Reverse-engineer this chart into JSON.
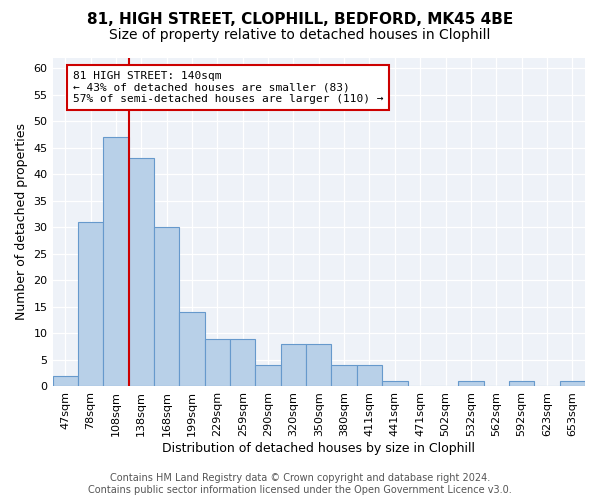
{
  "title1": "81, HIGH STREET, CLOPHILL, BEDFORD, MK45 4BE",
  "title2": "Size of property relative to detached houses in Clophill",
  "xlabel": "Distribution of detached houses by size in Clophill",
  "ylabel": "Number of detached properties",
  "bar_values": [
    2,
    31,
    47,
    43,
    30,
    14,
    9,
    9,
    4,
    8,
    8,
    4,
    4,
    1,
    0,
    0,
    1,
    0,
    1,
    0,
    1
  ],
  "bar_labels": [
    "47sqm",
    "78sqm",
    "108sqm",
    "138sqm",
    "168sqm",
    "199sqm",
    "229sqm",
    "259sqm",
    "290sqm",
    "320sqm",
    "350sqm",
    "380sqm",
    "411sqm",
    "441sqm",
    "471sqm",
    "502sqm",
    "532sqm",
    "562sqm",
    "592sqm",
    "623sqm",
    "653sqm"
  ],
  "bar_color": "#b8d0e8",
  "bar_edge_color": "#6699cc",
  "vline_color": "#cc0000",
  "vline_x_index": 3,
  "annotation_text": "81 HIGH STREET: 140sqm\n← 43% of detached houses are smaller (83)\n57% of semi-detached houses are larger (110) →",
  "annotation_box_color": "#ffffff",
  "annotation_box_edge_color": "#cc0000",
  "ylim": [
    0,
    62
  ],
  "yticks": [
    0,
    5,
    10,
    15,
    20,
    25,
    30,
    35,
    40,
    45,
    50,
    55,
    60
  ],
  "footer_text": "Contains HM Land Registry data © Crown copyright and database right 2024.\nContains public sector information licensed under the Open Government Licence v3.0.",
  "title1_fontsize": 11,
  "title2_fontsize": 10,
  "xlabel_fontsize": 9,
  "ylabel_fontsize": 9,
  "tick_fontsize": 8,
  "annotation_fontsize": 8,
  "footer_fontsize": 7,
  "bg_color": "#eef2f8"
}
